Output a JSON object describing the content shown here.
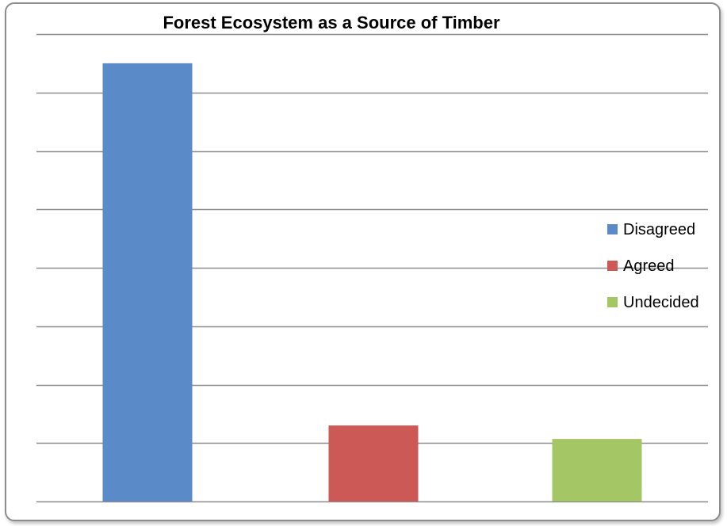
{
  "chart_data": {
    "type": "bar",
    "title": "Forest Ecosystem as a Source of Timber",
    "xlabel": "",
    "ylabel": "",
    "grid": true,
    "legend_position": "right",
    "ylim": [
      0,
      8
    ],
    "y_gridline_step": 1,
    "series": [
      {
        "name": "Disagreed",
        "value": 7.5,
        "color": "#5b8ac8"
      },
      {
        "name": "Agreed",
        "value": 1.3,
        "color": "#cc5955"
      },
      {
        "name": "Undecided",
        "value": 1.07,
        "color": "#a4c664"
      }
    ]
  }
}
